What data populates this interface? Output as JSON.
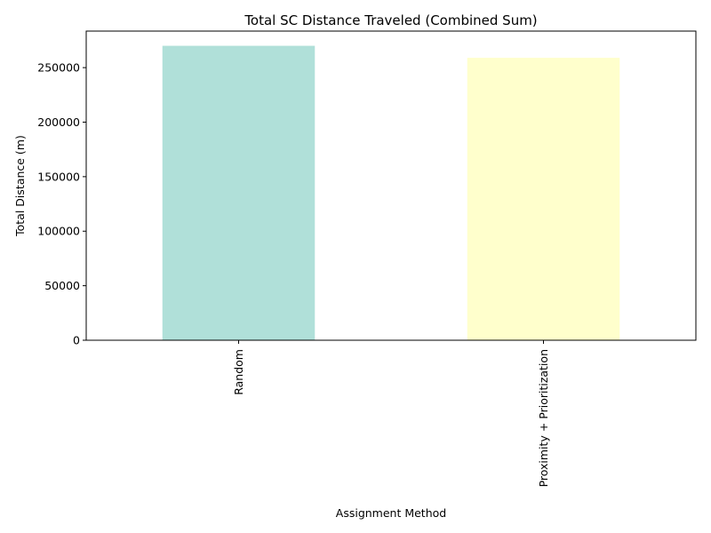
{
  "chart_data": {
    "type": "bar",
    "title": "Total SC Distance Traveled (Combined Sum)",
    "xlabel": "Assignment Method",
    "ylabel": "Total Distance (m)",
    "categories": [
      "Random",
      "Proximity + Prioritization"
    ],
    "values": [
      270000,
      259000
    ],
    "colors": [
      "#b0e0d9",
      "#ffffcc"
    ],
    "ylim": [
      0,
      283500
    ],
    "yticks": [
      0,
      50000,
      100000,
      150000,
      200000,
      250000
    ],
    "ytick_labels": [
      "0",
      "50000",
      "100000",
      "150000",
      "200000",
      "250000"
    ],
    "grid": false,
    "legend": "none",
    "x_tick_rotation": "vertical"
  }
}
